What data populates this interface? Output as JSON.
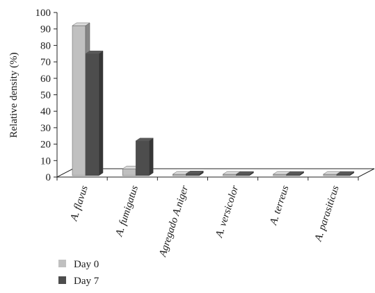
{
  "chart_data": {
    "type": "bar",
    "title": "",
    "xlabel": "",
    "ylabel": "Relative density (%)",
    "ylim": [
      0,
      100
    ],
    "yticks": [
      0,
      10,
      20,
      30,
      40,
      50,
      60,
      70,
      80,
      90,
      100
    ],
    "categories": [
      "A. flavus",
      "A. fumigatus",
      "Agregado A.niger",
      "A. versicolor",
      "A. terreus",
      "A. parasiticus"
    ],
    "series": [
      {
        "name": "Day 0",
        "color": "#c0c0c0",
        "values": [
          92,
          5,
          1.5,
          0,
          0,
          0
        ]
      },
      {
        "name": "Day 7",
        "color": "#4d4d4d",
        "values": [
          75,
          22,
          2,
          1,
          1,
          1
        ]
      }
    ],
    "style": "3d-clustered-column",
    "grid": false,
    "legend_position": "bottom-left"
  }
}
